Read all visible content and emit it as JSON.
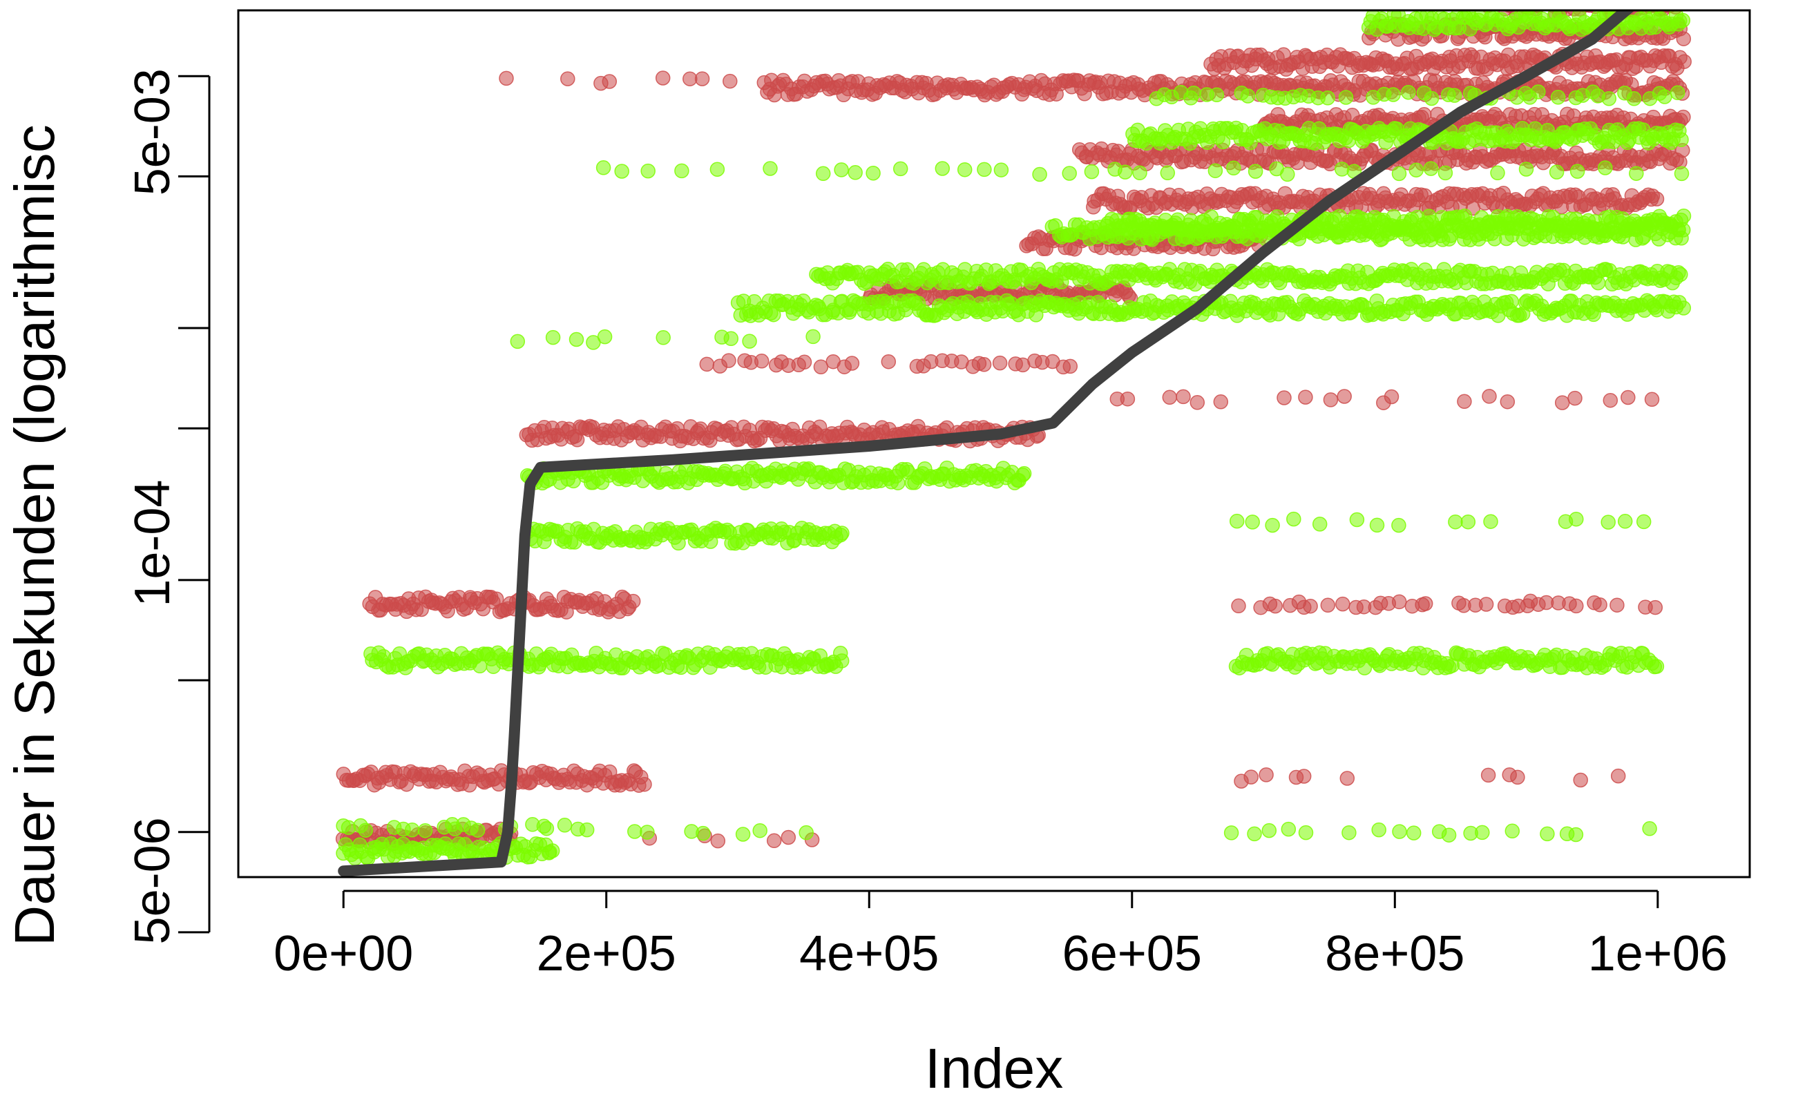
{
  "chart_data": {
    "type": "scatter",
    "title": "",
    "xlabel": "Index",
    "ylabel": "Dauer in Sekunden (logarithmisc",
    "log_y": true,
    "xlim": [
      -80000,
      1070000
    ],
    "ylim_log": [
      -5.48,
      -2.04
    ],
    "x_ticks": [
      {
        "value": 0,
        "label": "0e+00"
      },
      {
        "value": 200000,
        "label": "2e+05"
      },
      {
        "value": 400000,
        "label": "4e+05"
      },
      {
        "value": 600000,
        "label": "6e+05"
      },
      {
        "value": 800000,
        "label": "8e+05"
      },
      {
        "value": 1000000,
        "label": "1e+06"
      }
    ],
    "y_ticks": [
      {
        "value": 2e-06,
        "label": ""
      },
      {
        "value": 5e-06,
        "label": "5e-06"
      },
      {
        "value": 2e-05,
        "label": ""
      },
      {
        "value": 5e-05,
        "label": ""
      },
      {
        "value": 0.0002,
        "label": ""
      },
      {
        "value": 0.0005,
        "label": ""
      },
      {
        "value": 0.002,
        "label": ""
      },
      {
        "value": 0.005,
        "label": "5e-03"
      }
    ],
    "y_label_blocks": [
      {
        "label": "5e-03",
        "value": 0.003
      },
      {
        "label": "1e-04",
        "value": 7e-05
      },
      {
        "label": "5e-06",
        "value": 3.2e-06
      }
    ],
    "colors": {
      "red": "#cc4b4b",
      "green": "#7cfc00",
      "curve": "#404040"
    },
    "series": [
      {
        "color": "red",
        "bands": [
          {
            "y": 4.8e-06,
            "x0": 0,
            "x1": 130000,
            "density": "dense"
          },
          {
            "y": 8.2e-06,
            "x0": 0,
            "x1": 230000,
            "density": "dense"
          },
          {
            "y": 8.2e-06,
            "x0": 680000,
            "x1": 1000000,
            "density": "sparse"
          },
          {
            "y": 4.7e-06,
            "x0": 220000,
            "x1": 360000,
            "density": "sparse"
          },
          {
            "y": 4e-05,
            "x0": 20000,
            "x1": 220000,
            "density": "dense"
          },
          {
            "y": 4e-05,
            "x0": 680000,
            "x1": 1000000,
            "density": "medium"
          },
          {
            "y": 0.00019,
            "x0": 140000,
            "x1": 530000,
            "density": "dense"
          },
          {
            "y": 0.00026,
            "x0": 570000,
            "x1": 1020000,
            "density": "sparse"
          },
          {
            "y": 0.00036,
            "x0": 270000,
            "x1": 570000,
            "density": "medium"
          },
          {
            "y": 0.0007,
            "x0": 400000,
            "x1": 600000,
            "density": "dense"
          },
          {
            "y": 0.0011,
            "x0": 520000,
            "x1": 700000,
            "density": "dense"
          },
          {
            "y": 0.0016,
            "x0": 570000,
            "x1": 1000000,
            "density": "dense"
          },
          {
            "y": 0.0024,
            "x0": 560000,
            "x1": 1020000,
            "density": "dense"
          },
          {
            "y": 0.0033,
            "x0": 700000,
            "x1": 1020000,
            "density": "dense"
          },
          {
            "y": 0.0045,
            "x0": 320000,
            "x1": 1020000,
            "density": "dense"
          },
          {
            "y": 0.0048,
            "x0": 125000,
            "x1": 300000,
            "density": "sparse"
          },
          {
            "y": 0.0057,
            "x0": 660000,
            "x1": 1020000,
            "density": "dense"
          },
          {
            "y": 0.0075,
            "x0": 780000,
            "x1": 1020000,
            "density": "dense"
          },
          {
            "y": 0.0095,
            "x0": 870000,
            "x1": 1020000,
            "density": "dense"
          }
        ]
      },
      {
        "color": "green",
        "bands": [
          {
            "y": 4.2e-06,
            "x0": 0,
            "x1": 160000,
            "density": "dense"
          },
          {
            "y": 5.2e-06,
            "x0": 0,
            "x1": 200000,
            "density": "medium"
          },
          {
            "y": 5e-06,
            "x0": 680000,
            "x1": 1000000,
            "density": "sparse"
          },
          {
            "y": 5e-06,
            "x0": 220000,
            "x1": 360000,
            "density": "sparse"
          },
          {
            "y": 2.4e-05,
            "x0": 20000,
            "x1": 380000,
            "density": "dense"
          },
          {
            "y": 2.4e-05,
            "x0": 680000,
            "x1": 1000000,
            "density": "dense"
          },
          {
            "y": 7.5e-05,
            "x0": 140000,
            "x1": 380000,
            "density": "dense"
          },
          {
            "y": 8.5e-05,
            "x0": 680000,
            "x1": 1000000,
            "density": "sparse"
          },
          {
            "y": 0.00013,
            "x0": 140000,
            "x1": 520000,
            "density": "dense"
          },
          {
            "y": 0.00045,
            "x0": 120000,
            "x1": 370000,
            "density": "sparse"
          },
          {
            "y": 0.0006,
            "x0": 300000,
            "x1": 1020000,
            "density": "dense"
          },
          {
            "y": 0.0008,
            "x0": 360000,
            "x1": 1020000,
            "density": "dense"
          },
          {
            "y": 0.0012,
            "x0": 540000,
            "x1": 1020000,
            "density": "dense"
          },
          {
            "y": 0.0013,
            "x0": 580000,
            "x1": 1020000,
            "density": "dense"
          },
          {
            "y": 0.0021,
            "x0": 200000,
            "x1": 1020000,
            "density": "sparse"
          },
          {
            "y": 0.0029,
            "x0": 600000,
            "x1": 1020000,
            "density": "dense"
          },
          {
            "y": 0.0042,
            "x0": 620000,
            "x1": 1020000,
            "density": "medium"
          },
          {
            "y": 0.0082,
            "x0": 780000,
            "x1": 1020000,
            "density": "dense"
          }
        ]
      }
    ],
    "curve": {
      "name": "",
      "points": [
        [
          0,
          3.5e-06
        ],
        [
          120000,
          3.8e-06
        ],
        [
          125000,
          5e-06
        ],
        [
          128000,
          8e-06
        ],
        [
          130000,
          1.2e-05
        ],
        [
          134000,
          3e-05
        ],
        [
          138000,
          7.5e-05
        ],
        [
          142000,
          0.00012
        ],
        [
          150000,
          0.00014
        ],
        [
          250000,
          0.00015
        ],
        [
          400000,
          0.00017
        ],
        [
          500000,
          0.00019
        ],
        [
          540000,
          0.00021
        ],
        [
          570000,
          0.0003
        ],
        [
          600000,
          0.0004
        ],
        [
          650000,
          0.0006
        ],
        [
          700000,
          0.001
        ],
        [
          750000,
          0.0016
        ],
        [
          800000,
          0.0024
        ],
        [
          850000,
          0.0036
        ],
        [
          900000,
          0.005
        ],
        [
          950000,
          0.007
        ],
        [
          980000,
          0.0095
        ],
        [
          1000000,
          0.013
        ],
        [
          1010000,
          0.016
        ]
      ]
    }
  }
}
